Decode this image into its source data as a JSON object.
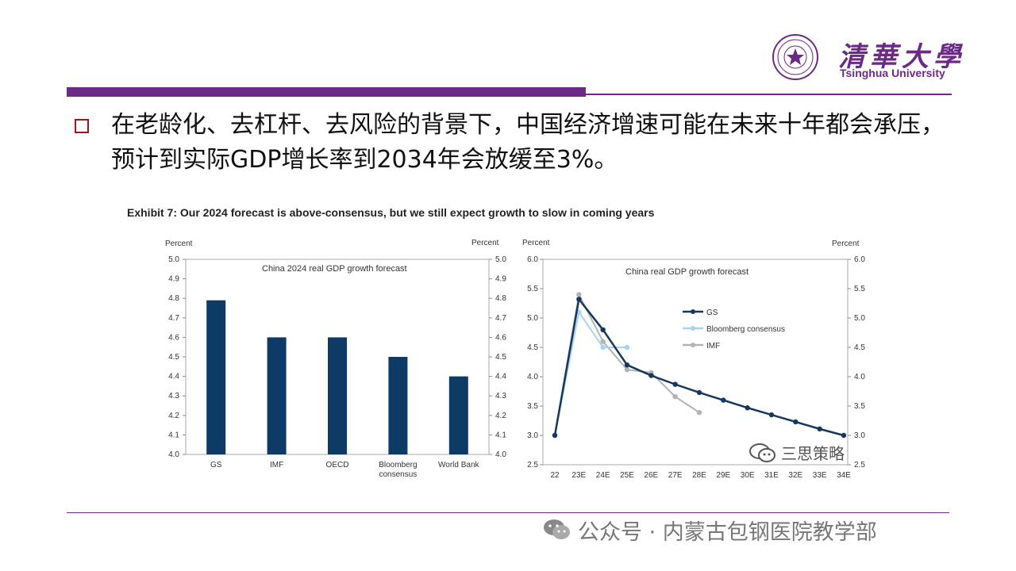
{
  "logo": {
    "cn": "清華大學",
    "en": "Tsinghua University"
  },
  "headline": "在老龄化、去杠杆、去风险的背景下，中国经济增速可能在未来十年都会承压，预计到实际GDP增长率到2034年会放缓至3%。",
  "exhibit_title": "Exhibit 7: Our 2024 forecast is above-consensus, but we still expect growth to slow in coming years",
  "footer": "公众号 · 内蒙古包钢医院教学部",
  "watermark": "三思策略",
  "colors": {
    "brand": "#6b2a86",
    "bullet": "#a0141c",
    "bar": "#0e3a66",
    "gs": "#16385f",
    "bloomberg": "#a8d4ef",
    "imf": "#b3b3b3"
  },
  "chart_data": [
    {
      "type": "bar",
      "title": "China 2024 real GDP growth forecast",
      "ylabel_left": "Percent",
      "ylabel_right": "Percent",
      "ylim": [
        4.0,
        5.0
      ],
      "yticks": [
        "4.0",
        "4.1",
        "4.2",
        "4.3",
        "4.4",
        "4.5",
        "4.6",
        "4.7",
        "4.8",
        "4.9",
        "5.0"
      ],
      "categories": [
        "GS",
        "IMF",
        "OECD",
        "Bloomberg consensus",
        "World Bank"
      ],
      "category_lines": [
        [
          "GS"
        ],
        [
          "IMF"
        ],
        [
          "OECD"
        ],
        [
          "Bloomberg",
          "consensus"
        ],
        [
          "World Bank"
        ]
      ],
      "values": [
        4.79,
        4.6,
        4.6,
        4.5,
        4.4
      ]
    },
    {
      "type": "line",
      "title": "China real GDP growth forecast",
      "ylabel_left": "Percent",
      "ylabel_right": "Percent",
      "ylim": [
        2.5,
        6.0
      ],
      "yticks": [
        "2.5",
        "3.0",
        "3.5",
        "4.0",
        "4.5",
        "5.0",
        "5.5",
        "6.0"
      ],
      "x": [
        "22",
        "23E",
        "24E",
        "25E",
        "26E",
        "27E",
        "28E",
        "29E",
        "30E",
        "31E",
        "32E",
        "33E",
        "34E"
      ],
      "legend_position": "top-right",
      "series": [
        {
          "name": "GS",
          "values": [
            3.0,
            5.32,
            4.8,
            4.2,
            4.02,
            3.87,
            3.73,
            3.6,
            3.47,
            3.35,
            3.23,
            3.11,
            3.0
          ]
        },
        {
          "name": "Bloomberg consensus",
          "values": [
            3.0,
            5.1,
            4.5,
            4.5,
            null,
            null,
            null,
            null,
            null,
            null,
            null,
            null,
            null
          ]
        },
        {
          "name": "IMF",
          "values": [
            3.0,
            5.4,
            4.6,
            4.12,
            4.07,
            3.66,
            3.39,
            null,
            null,
            null,
            null,
            null,
            null
          ]
        }
      ]
    }
  ]
}
